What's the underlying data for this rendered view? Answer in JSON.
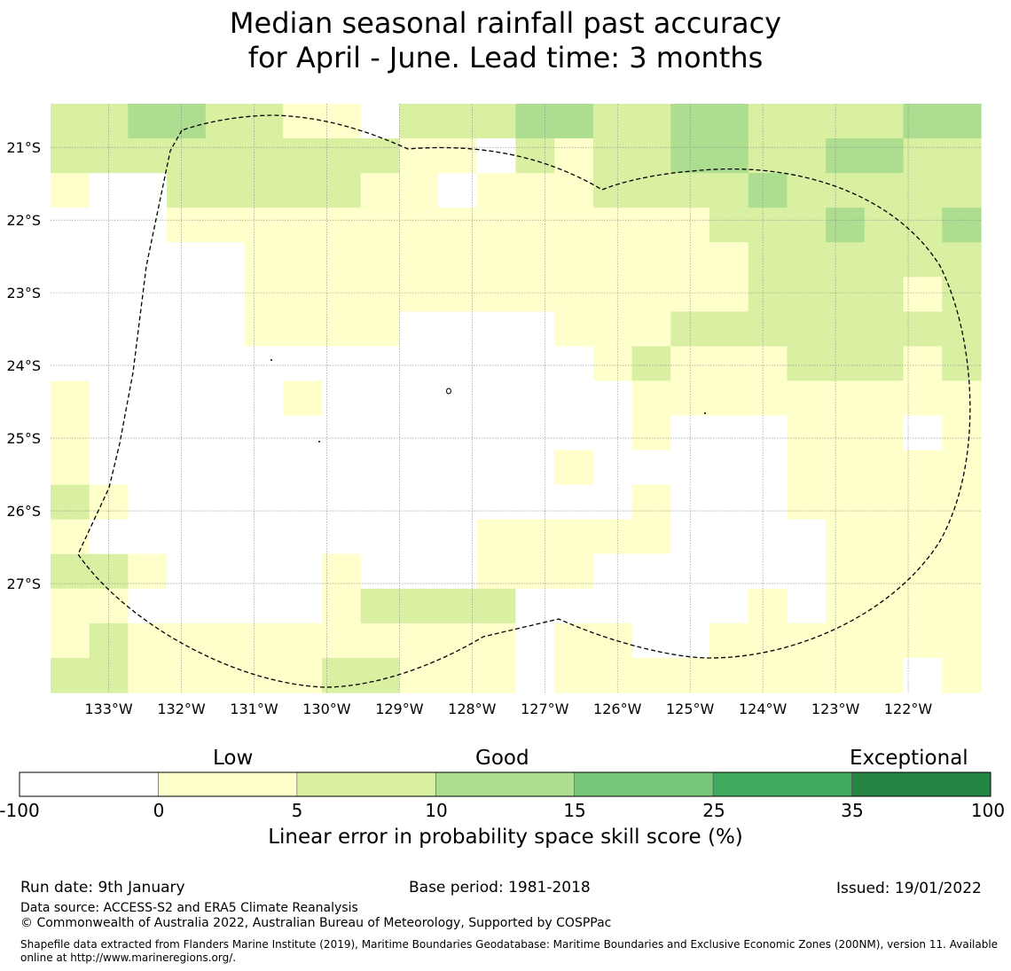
{
  "title": {
    "line1": "Median seasonal rainfall past accuracy",
    "line2": "for April - June. Lead time: 3 months"
  },
  "map": {
    "lat_labels": [
      "21°S",
      "22°S",
      "23°S",
      "24°S",
      "25°S",
      "26°S",
      "27°S"
    ],
    "lat_values": [
      -21,
      -22,
      -23,
      -24,
      -25,
      -26,
      -27
    ],
    "lon_labels": [
      "133°W",
      "132°W",
      "131°W",
      "130°W",
      "129°W",
      "128°W",
      "127°W",
      "126°W",
      "125°W",
      "124°W",
      "123°W",
      "122°W"
    ],
    "lon_values": [
      -133,
      -132,
      -131,
      -130,
      -129,
      -128,
      -127,
      -126,
      -125,
      -124,
      -123,
      -122
    ],
    "extent": {
      "lon_min": -133.8,
      "lon_max": -121.0,
      "lat_min": -28.5,
      "lat_max": -20.4
    },
    "cell_size_deg": 0.83,
    "grid_categories_note": "0 = below 0 (white), 1 = 0-5, 2 = 5-10, 3 = 10-15",
    "grid": [
      [
        2,
        2,
        3,
        3,
        2,
        2,
        1,
        1,
        0,
        2,
        2,
        2,
        3,
        3,
        2,
        2,
        3,
        3,
        2,
        2,
        2,
        2,
        3,
        3
      ],
      [
        2,
        2,
        2,
        2,
        2,
        2,
        2,
        2,
        2,
        1,
        1,
        0,
        2,
        1,
        2,
        2,
        3,
        3,
        2,
        2,
        3,
        3,
        2,
        2
      ],
      [
        1,
        0,
        0,
        2,
        2,
        2,
        2,
        2,
        1,
        1,
        0,
        1,
        1,
        1,
        2,
        2,
        2,
        2,
        3,
        2,
        2,
        2,
        2,
        2
      ],
      [
        0,
        0,
        0,
        1,
        1,
        1,
        1,
        1,
        1,
        1,
        1,
        1,
        1,
        1,
        1,
        1,
        1,
        2,
        2,
        2,
        3,
        2,
        2,
        3
      ],
      [
        0,
        0,
        0,
        0,
        0,
        1,
        1,
        1,
        1,
        1,
        1,
        1,
        1,
        1,
        1,
        1,
        1,
        1,
        2,
        2,
        2,
        2,
        2,
        2
      ],
      [
        0,
        0,
        0,
        0,
        0,
        1,
        1,
        1,
        1,
        1,
        1,
        1,
        1,
        1,
        1,
        1,
        1,
        1,
        2,
        2,
        2,
        2,
        1,
        2
      ],
      [
        0,
        0,
        0,
        0,
        0,
        1,
        1,
        1,
        1,
        0,
        0,
        0,
        0,
        1,
        1,
        1,
        2,
        2,
        2,
        2,
        2,
        2,
        2,
        2
      ],
      [
        0,
        0,
        0,
        0,
        0,
        0,
        0,
        0,
        0,
        0,
        0,
        0,
        0,
        0,
        1,
        2,
        1,
        1,
        1,
        2,
        2,
        2,
        1,
        2
      ],
      [
        1,
        0,
        0,
        0,
        0,
        0,
        1,
        0,
        0,
        0,
        0,
        0,
        0,
        0,
        0,
        1,
        1,
        1,
        1,
        1,
        1,
        1,
        1,
        1
      ],
      [
        1,
        0,
        0,
        0,
        0,
        0,
        0,
        0,
        0,
        0,
        0,
        0,
        0,
        0,
        0,
        1,
        0,
        0,
        0,
        1,
        1,
        1,
        0,
        1
      ],
      [
        1,
        0,
        0,
        0,
        0,
        0,
        0,
        0,
        0,
        0,
        0,
        0,
        0,
        1,
        0,
        0,
        0,
        0,
        0,
        1,
        1,
        1,
        1,
        1
      ],
      [
        2,
        1,
        0,
        0,
        0,
        0,
        0,
        0,
        0,
        0,
        0,
        0,
        0,
        0,
        0,
        1,
        0,
        0,
        0,
        1,
        1,
        1,
        1,
        1
      ],
      [
        1,
        0,
        0,
        0,
        0,
        0,
        0,
        0,
        0,
        0,
        0,
        1,
        1,
        1,
        1,
        1,
        0,
        0,
        0,
        0,
        1,
        1,
        1,
        1
      ],
      [
        2,
        2,
        1,
        0,
        0,
        0,
        0,
        1,
        0,
        0,
        0,
        1,
        1,
        1,
        0,
        0,
        0,
        0,
        0,
        0,
        1,
        1,
        1,
        1
      ],
      [
        1,
        1,
        0,
        0,
        0,
        0,
        0,
        1,
        2,
        2,
        2,
        2,
        0,
        0,
        0,
        0,
        0,
        0,
        1,
        0,
        1,
        1,
        1,
        1
      ],
      [
        1,
        2,
        1,
        1,
        1,
        1,
        1,
        1,
        1,
        1,
        1,
        1,
        0,
        1,
        1,
        0,
        0,
        1,
        1,
        1,
        1,
        1,
        1,
        1
      ],
      [
        2,
        2,
        1,
        1,
        1,
        1,
        1,
        2,
        2,
        1,
        1,
        1,
        0,
        1,
        1,
        1,
        1,
        1,
        1,
        1,
        1,
        1,
        0,
        1
      ]
    ]
  },
  "colorbar": {
    "headers": [
      "Low",
      "Good",
      "Exceptional"
    ],
    "ticks": [
      "-100",
      "0",
      "5",
      "10",
      "15",
      "25",
      "35",
      "100"
    ],
    "colors": [
      "#ffffff",
      "#ffffcc",
      "#d9f0a3",
      "#addd8e",
      "#78c679",
      "#41ab5d",
      "#238443"
    ],
    "label": "Linear error in probability space skill score (%)"
  },
  "footer": {
    "run_date": "Run date: 9th January",
    "base_period": "Base period: 1981-2018",
    "issued": "Issued: 19/01/2022",
    "data_source": "Data source: ACCESS-S2 and ERA5 Climate Reanalysis",
    "copyright": "© Commonwealth of Australia 2022, Australian Bureau of Meteorology, Supported by COSPPac",
    "shapefile_line1": "Shapefile data extracted from Flanders Marine Institute (2019), Maritime Boundaries Geodatabase: Maritime Boundaries and Exclusive Economic Zones (200NM), version 11. Available",
    "shapefile_line2": "online at http://www.marineregions.org/."
  }
}
